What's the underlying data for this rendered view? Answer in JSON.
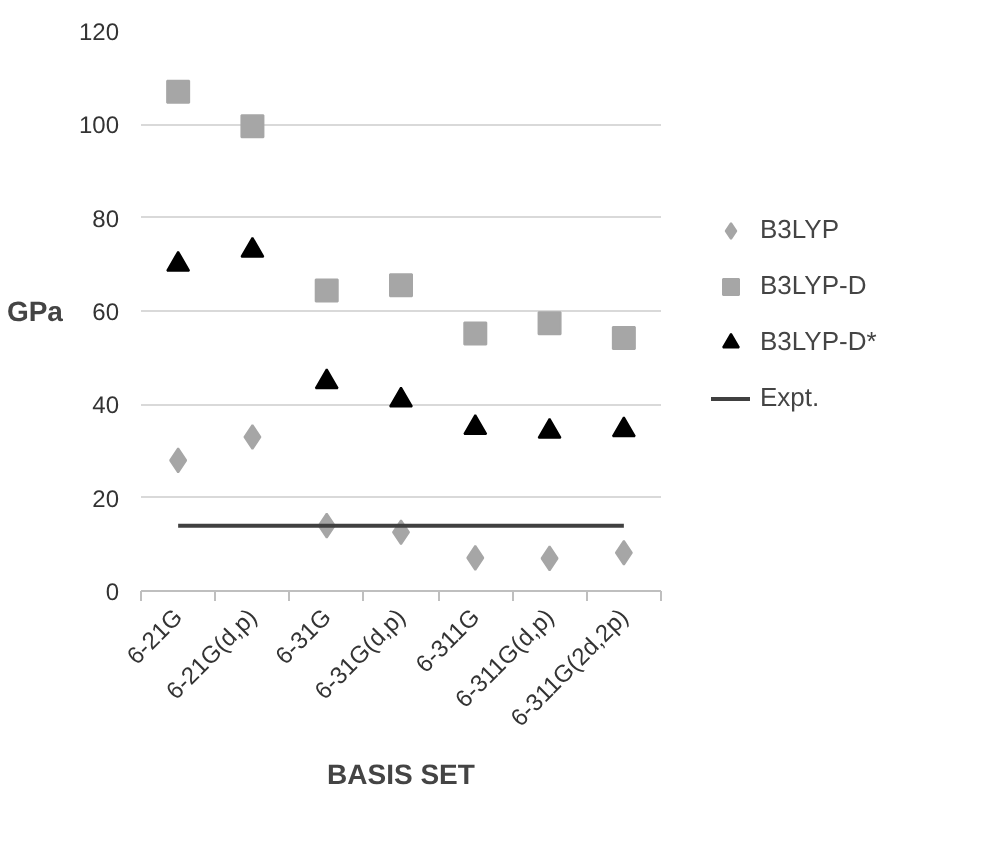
{
  "chart_data": {
    "type": "scatter",
    "xlabel": "BASIS SET",
    "ylabel": "GPa",
    "categories": [
      "6-21G",
      "6-21G(d,p)",
      "6-31G",
      "6-31G(d,p)",
      "6-311G",
      "6-311G(d,p)",
      "6-311G(2d,2p)"
    ],
    "series": [
      {
        "name": "B3LYP",
        "color": "#a6a6a6",
        "marker": "diamond",
        "values": [
          28,
          33,
          14,
          12.6,
          7.1,
          7,
          8.2
        ]
      },
      {
        "name": "B3LYP-D",
        "color": "#a6a6a6",
        "marker": "square",
        "values": [
          107,
          99.6,
          64.4,
          65.5,
          55.2,
          57.4,
          54.2
        ]
      },
      {
        "name": "B3LYP-D*",
        "color": "#000000",
        "marker": "triangle",
        "values": [
          70,
          73,
          44.8,
          40.9,
          35,
          34.2,
          34.5
        ]
      },
      {
        "name": "Expt.",
        "type": "line",
        "color": "#404040",
        "values": [
          14,
          14,
          14,
          14,
          14,
          14,
          14
        ]
      }
    ],
    "ylim": [
      0,
      120
    ],
    "yticks": [
      0,
      20,
      40,
      60,
      80,
      100,
      120
    ],
    "grid": "y",
    "legend": "right"
  }
}
